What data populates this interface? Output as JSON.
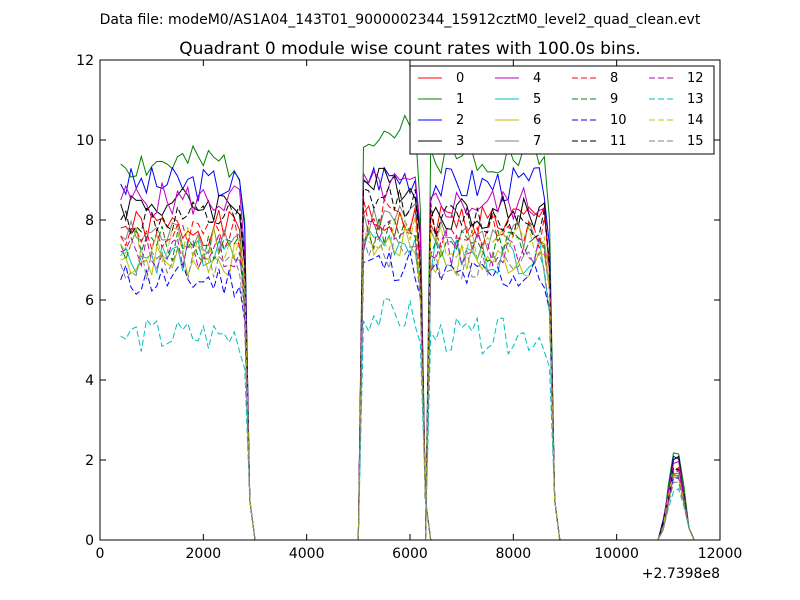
{
  "chart_data": {
    "type": "line",
    "suptitle": "Data file: modeM0/AS1A04_143T01_9000002344_15912cztM0_level2_quad_clean.evt",
    "title": "Quadrant 0 module wise count rates with 100.0s bins.",
    "xlabel": "",
    "ylabel": "",
    "xlim": [
      0,
      12000
    ],
    "ylim": [
      0,
      12
    ],
    "x_offset_label": "+2.7398e8",
    "x_ticks": [
      0,
      2000,
      4000,
      6000,
      8000,
      10000,
      12000
    ],
    "y_ticks": [
      0,
      2,
      4,
      6,
      8,
      10,
      12
    ],
    "grid": false,
    "legend_position": "top-right",
    "legend_columns": 4,
    "x_step": 100,
    "segments": [
      {
        "start": 500,
        "end": 2800
      },
      {
        "start": 5100,
        "end": 6200
      },
      {
        "start": 6400,
        "end": 8700
      },
      {
        "start": 10900,
        "end": 11300
      }
    ],
    "series": [
      {
        "name": "0",
        "color": "#ff0000",
        "dash": false,
        "levels": [
          7.8,
          7.9,
          8.0,
          1.9
        ]
      },
      {
        "name": "1",
        "color": "#008000",
        "dash": false,
        "levels": [
          9.4,
          10.2,
          9.6,
          2.6
        ]
      },
      {
        "name": "2",
        "color": "#0000ff",
        "dash": false,
        "levels": [
          8.9,
          9.1,
          8.9,
          2.5
        ]
      },
      {
        "name": "3",
        "color": "#000000",
        "dash": false,
        "levels": [
          8.4,
          8.9,
          8.2,
          2.4
        ]
      },
      {
        "name": "4",
        "color": "#bf00bf",
        "dash": false,
        "levels": [
          8.5,
          8.8,
          8.4,
          2.3
        ]
      },
      {
        "name": "5",
        "color": "#00bfbf",
        "dash": false,
        "levels": [
          7.1,
          7.5,
          7.1,
          2.0
        ]
      },
      {
        "name": "6",
        "color": "#bfbf00",
        "dash": false,
        "levels": [
          7.0,
          7.4,
          7.0,
          1.9
        ]
      },
      {
        "name": "7",
        "color": "#808080",
        "dash": false,
        "levels": [
          7.6,
          8.0,
          7.6,
          2.0
        ]
      },
      {
        "name": "8",
        "color": "#ff0000",
        "dash": true,
        "levels": [
          7.6,
          8.1,
          7.7,
          2.1
        ]
      },
      {
        "name": "9",
        "color": "#008000",
        "dash": true,
        "levels": [
          7.4,
          7.7,
          7.3,
          2.1
        ]
      },
      {
        "name": "10",
        "color": "#0000ff",
        "dash": true,
        "levels": [
          6.5,
          6.9,
          6.6,
          1.9
        ]
      },
      {
        "name": "11",
        "color": "#000000",
        "dash": true,
        "levels": [
          8.0,
          8.5,
          8.0,
          2.2
        ]
      },
      {
        "name": "12",
        "color": "#bf00bf",
        "dash": true,
        "levels": [
          7.2,
          7.6,
          7.3,
          2.0
        ]
      },
      {
        "name": "13",
        "color": "#00bfbf",
        "dash": true,
        "levels": [
          5.1,
          5.6,
          5.1,
          1.5
        ]
      },
      {
        "name": "14",
        "color": "#bfbf00",
        "dash": true,
        "levels": [
          7.4,
          7.7,
          7.4,
          2.0
        ]
      },
      {
        "name": "15",
        "color": "#808080",
        "dash": true,
        "levels": [
          6.9,
          7.2,
          6.9,
          1.8
        ]
      }
    ]
  }
}
